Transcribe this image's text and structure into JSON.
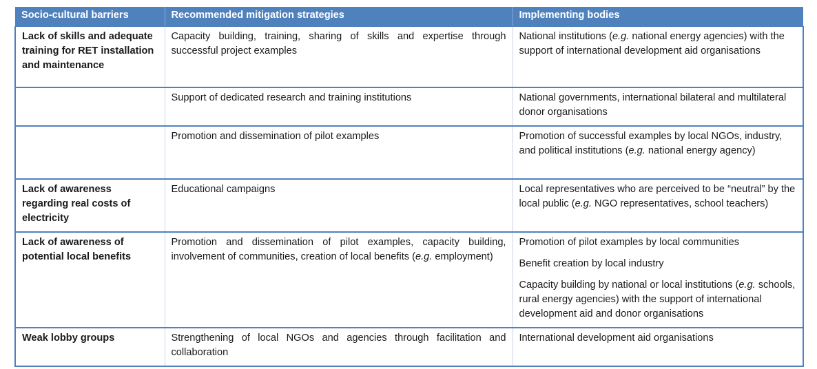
{
  "table": {
    "headers": {
      "barriers": "Socio-cultural barriers",
      "mitigation": "Recommended mitigation strategies",
      "bodies": "Implementing bodies"
    },
    "rows": [
      {
        "barrier": "Lack of skills and adequate training for RET installation and maintenance",
        "mitigation": "Capacity building, training, sharing of skills and expertise through successful project examples",
        "bodies": [
          {
            "pre": "National institutions (",
            "em": "e.g.",
            "post": " national energy agencies) with the support of international development aid organisations"
          }
        ]
      },
      {
        "barrier": "",
        "mitigation": "Support of dedicated research and training institutions",
        "bodies": [
          {
            "pre": "National governments, international bilateral and multilateral donor organisations",
            "em": "",
            "post": ""
          }
        ]
      },
      {
        "barrier": "",
        "mitigation": "Promotion and dissemination of pilot examples",
        "bodies": [
          {
            "pre": "Promotion of successful examples by local NGOs, industry, and political institutions (",
            "em": "e.g.",
            "post": " national energy agency)"
          }
        ]
      },
      {
        "barrier": "Lack of awareness regarding real costs of electricity",
        "mitigation": "Educational campaigns",
        "bodies": [
          {
            "pre": "Local representatives who are perceived to be “neutral” by the local public (",
            "em": "e.g.",
            "post": " NGO representatives, school teachers)"
          }
        ]
      },
      {
        "barrier": "Lack of awareness of potential local benefits",
        "mitigation_pre": "Promotion and dissemination of pilot examples, capacity building, involvement of communities, creation of local benefits (",
        "mitigation_em": "e.g.",
        "mitigation_post": " employment)",
        "bodies": [
          {
            "pre": "Promotion of pilot examples by local communities",
            "em": "",
            "post": ""
          },
          {
            "pre": "Benefit creation by local industry",
            "em": "",
            "post": ""
          },
          {
            "pre": "Capacity building by national or local institutions (",
            "em": "e.g.",
            "post": " schools, rural energy agencies) with the support of international development aid and donor organisations"
          }
        ]
      },
      {
        "barrier": "Weak lobby groups",
        "mitigation": "Strengthening of local NGOs and agencies through facilitation and collaboration",
        "bodies": [
          {
            "pre": "International development aid organisations",
            "em": "",
            "post": ""
          }
        ]
      }
    ]
  }
}
